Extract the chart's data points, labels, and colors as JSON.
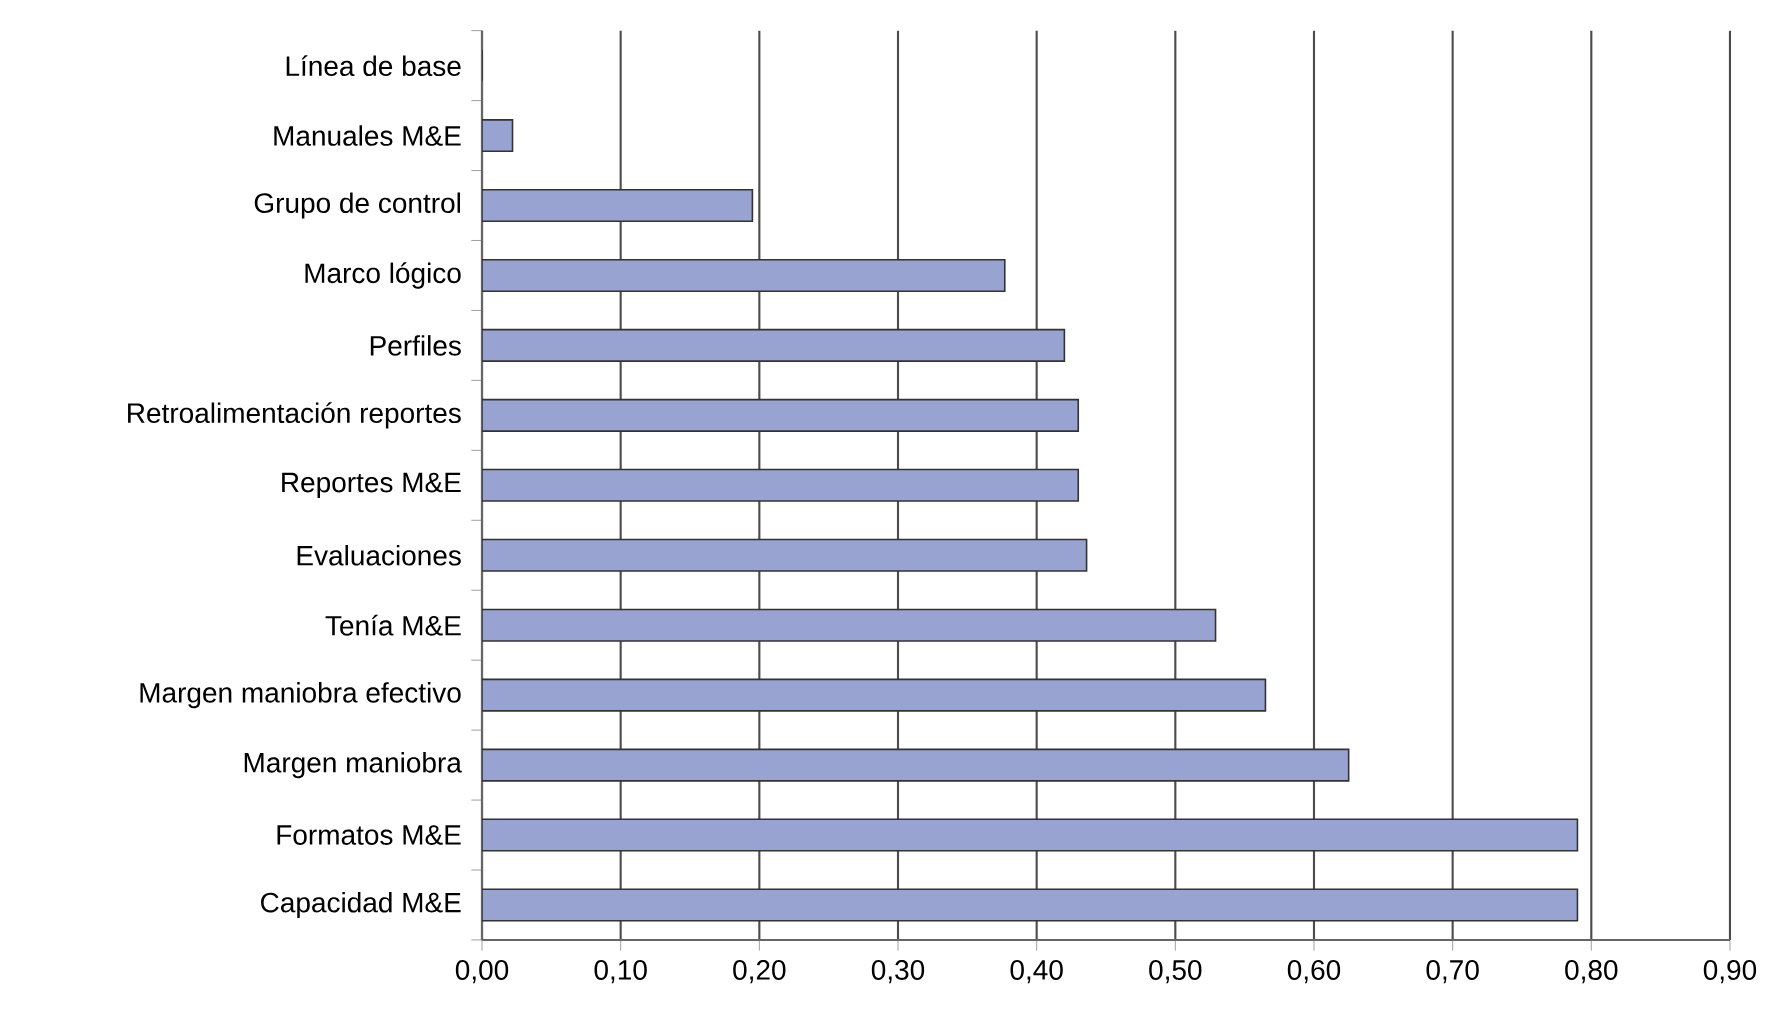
{
  "chart_data": {
    "type": "bar",
    "orientation": "horizontal",
    "categories": [
      "Línea de base",
      "Manuales M&E",
      "Grupo de control",
      "Marco lógico",
      "Perfiles",
      "Retroalimentación reportes",
      "Reportes M&E",
      "Evaluaciones",
      "Tenía M&E",
      "Margen maniobra efectivo",
      "Margen maniobra",
      "Formatos M&E",
      "Capacidad M&E"
    ],
    "values": [
      0,
      0.022,
      0.195,
      0.377,
      0.42,
      0.43,
      0.43,
      0.436,
      0.529,
      0.565,
      0.625,
      0.79,
      0.79
    ],
    "color": "#99a3d1",
    "xlim": [
      0,
      0.9
    ],
    "xticks": [
      {
        "value": 0,
        "label": "0,00"
      },
      {
        "value": 0.1,
        "label": "0,10"
      },
      {
        "value": 0.2,
        "label": "0,20"
      },
      {
        "value": 0.3,
        "label": "0,30"
      },
      {
        "value": 0.4,
        "label": "0,40"
      },
      {
        "value": 0.5,
        "label": "0,50"
      },
      {
        "value": 0.6,
        "label": "0,60"
      },
      {
        "value": 0.7,
        "label": "0,70"
      },
      {
        "value": 0.8,
        "label": "0,80"
      },
      {
        "value": 0.9,
        "label": "0,90"
      }
    ],
    "grid": "x"
  }
}
